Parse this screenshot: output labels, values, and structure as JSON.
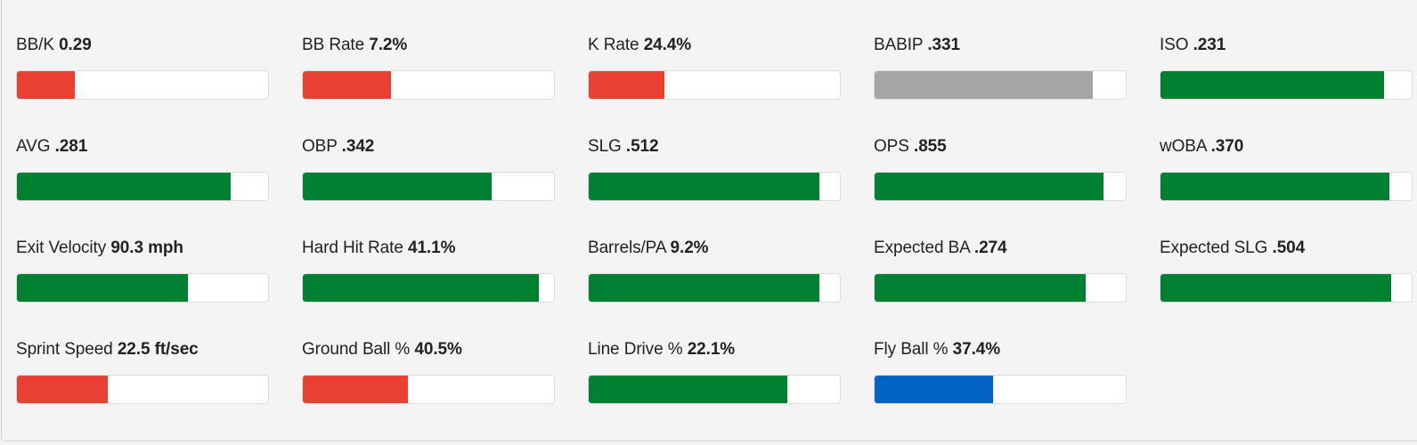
{
  "colors": {
    "good": "#008131",
    "bad": "#e94033",
    "neutral": "#a5a5a5",
    "info": "#0163c3"
  },
  "stats": [
    {
      "name": "BB/K",
      "value": "0.29",
      "fill": 0.23,
      "status": "bad"
    },
    {
      "name": "BB Rate",
      "value": "7.2%",
      "fill": 0.35,
      "status": "bad"
    },
    {
      "name": "K Rate",
      "value": "24.4%",
      "fill": 0.3,
      "status": "bad"
    },
    {
      "name": "BABIP",
      "value": ".331",
      "fill": 0.87,
      "status": "neutral"
    },
    {
      "name": "ISO",
      "value": ".231",
      "fill": 0.89,
      "status": "good"
    },
    {
      "name": "AVG",
      "value": ".281",
      "fill": 0.85,
      "status": "good"
    },
    {
      "name": "OBP",
      "value": ".342",
      "fill": 0.75,
      "status": "good"
    },
    {
      "name": "SLG",
      "value": ".512",
      "fill": 0.92,
      "status": "good"
    },
    {
      "name": "OPS",
      "value": ".855",
      "fill": 0.91,
      "status": "good"
    },
    {
      "name": "wOBA",
      "value": ".370",
      "fill": 0.91,
      "status": "good"
    },
    {
      "name": "Exit Velocity",
      "value": "90.3 mph",
      "fill": 0.68,
      "status": "good"
    },
    {
      "name": "Hard Hit Rate",
      "value": "41.1%",
      "fill": 0.94,
      "status": "good"
    },
    {
      "name": "Barrels/PA",
      "value": "9.2%",
      "fill": 0.92,
      "status": "good"
    },
    {
      "name": "Expected BA",
      "value": ".274",
      "fill": 0.84,
      "status": "good"
    },
    {
      "name": "Expected SLG",
      "value": ".504",
      "fill": 0.92,
      "status": "good"
    },
    {
      "name": "Sprint Speed",
      "value": "22.5 ft/sec",
      "fill": 0.36,
      "status": "bad"
    },
    {
      "name": "Ground Ball %",
      "value": "40.5%",
      "fill": 0.42,
      "status": "bad"
    },
    {
      "name": "Line Drive %",
      "value": "22.1%",
      "fill": 0.79,
      "status": "good"
    },
    {
      "name": "Fly Ball %",
      "value": "37.4%",
      "fill": 0.47,
      "status": "info"
    }
  ]
}
